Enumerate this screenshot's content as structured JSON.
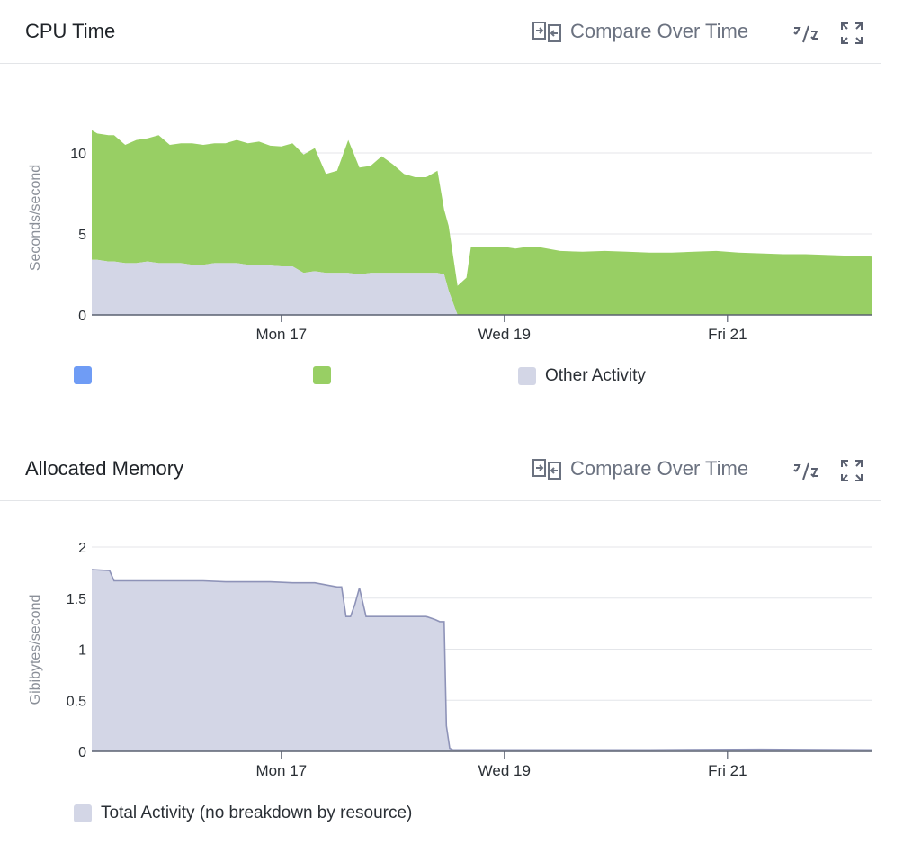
{
  "panels": [
    {
      "title": "CPU Time",
      "compare_label": "Compare Over Time",
      "icons": [
        "compare-icon",
        "split-icon",
        "expand-icon"
      ],
      "chart_data": {
        "type": "area",
        "stacked": true,
        "ylabel": "Seconds/second",
        "yticks": [
          0,
          5,
          10
        ],
        "ylim": [
          0,
          11.5
        ],
        "xlim": [
          0,
          35
        ],
        "xticks": [
          {
            "x": 8.5,
            "label": "Mon 17"
          },
          {
            "x": 18.5,
            "label": "Wed 19"
          },
          {
            "x": 28.5,
            "label": "Fri 21"
          }
        ],
        "grid": true,
        "series": [
          {
            "name": "",
            "color": "#6f9cf5",
            "x": [
              0,
              35
            ],
            "values": [
              0,
              0
            ]
          },
          {
            "name": "",
            "color": "#98cf64",
            "x": [
              0,
              0.25,
              0.75,
              1,
              1.5,
              2,
              2.5,
              3,
              3.5,
              4,
              4.5,
              5,
              5.5,
              6,
              6.5,
              7,
              7.5,
              8,
              8.5,
              9,
              9.5,
              10,
              10.5,
              11,
              11.5,
              12,
              12.5,
              13,
              13.5,
              14,
              14.5,
              15,
              15.5,
              15.8,
              16,
              16.4,
              16.8,
              17,
              17.5,
              18,
              18.5,
              19,
              19.5,
              20,
              21,
              22,
              23,
              24,
              25,
              26,
              27,
              28,
              29,
              30,
              31,
              32,
              33,
              34,
              34.5,
              35
            ],
            "values": [
              8.0,
              7.8,
              7.8,
              7.8,
              7.3,
              7.6,
              7.6,
              7.9,
              7.3,
              7.4,
              7.5,
              7.4,
              7.4,
              7.4,
              7.6,
              7.5,
              7.6,
              7.4,
              7.4,
              7.6,
              7.3,
              7.6,
              6.1,
              6.3,
              8.2,
              6.6,
              6.6,
              7.2,
              6.7,
              6.1,
              5.9,
              5.9,
              6.3,
              4.0,
              4.0,
              1.8,
              2.3,
              4.2,
              4.2,
              4.2,
              4.2,
              4.1,
              4.2,
              4.2,
              3.95,
              3.9,
              3.95,
              3.9,
              3.85,
              3.85,
              3.9,
              3.95,
              3.85,
              3.8,
              3.75,
              3.75,
              3.7,
              3.65,
              3.65,
              3.6
            ]
          },
          {
            "name": "Other Activity",
            "color": "#d3d6e6",
            "x": [
              0,
              0.25,
              0.75,
              1,
              1.5,
              2,
              2.5,
              3,
              3.5,
              4,
              4.5,
              5,
              5.5,
              6,
              6.5,
              7,
              7.5,
              8,
              8.5,
              9,
              9.5,
              10,
              10.5,
              11,
              11.5,
              12,
              12.5,
              13,
              13.5,
              14,
              14.5,
              15,
              15.5,
              15.8,
              16,
              16.4,
              16.8,
              17,
              17.5,
              18,
              18.5,
              19,
              19.5,
              20,
              21,
              22,
              23,
              24,
              25,
              26,
              27,
              28,
              29,
              30,
              31,
              32,
              33,
              34,
              34.5,
              35
            ],
            "values": [
              3.4,
              3.4,
              3.3,
              3.3,
              3.2,
              3.2,
              3.3,
              3.2,
              3.2,
              3.2,
              3.1,
              3.1,
              3.2,
              3.2,
              3.2,
              3.1,
              3.1,
              3.05,
              3.0,
              3.0,
              2.6,
              2.7,
              2.6,
              2.6,
              2.6,
              2.5,
              2.6,
              2.6,
              2.6,
              2.6,
              2.6,
              2.6,
              2.6,
              2.5,
              1.5,
              0,
              0,
              0,
              0,
              0,
              0,
              0,
              0,
              0,
              0,
              0,
              0,
              0,
              0,
              0,
              0,
              0,
              0,
              0,
              0,
              0,
              0,
              0,
              0,
              0
            ]
          }
        ]
      },
      "legend": [
        {
          "label": "",
          "color": "#6f9cf5"
        },
        {
          "label": "",
          "color": "#98cf64"
        },
        {
          "label": "Other Activity",
          "color": "#d3d6e6"
        }
      ]
    },
    {
      "title": "Allocated Memory",
      "compare_label": "Compare Over Time",
      "icons": [
        "compare-icon",
        "split-icon",
        "expand-icon"
      ],
      "chart_data": {
        "type": "area",
        "stacked": false,
        "ylabel": "Gibibytes/second",
        "yticks": [
          0,
          0.5,
          1,
          1.5,
          2
        ],
        "ylim": [
          0,
          2
        ],
        "xlim": [
          0,
          35
        ],
        "xticks": [
          {
            "x": 8.5,
            "label": "Mon 17"
          },
          {
            "x": 18.5,
            "label": "Wed 19"
          },
          {
            "x": 28.5,
            "label": "Fri 21"
          }
        ],
        "grid": true,
        "series": [
          {
            "name": "Total Activity (no breakdown by resource)",
            "color": "#d3d6e6",
            "stroke": "#8e93b8",
            "x": [
              0,
              0.8,
              1.0,
              1.5,
              3,
              4,
              5,
              6,
              7,
              8,
              9,
              10,
              11,
              11.2,
              11.4,
              11.6,
              11.8,
              12,
              12.3,
              12.6,
              13,
              14,
              15,
              15.4,
              15.6,
              15.8,
              15.9,
              16.05,
              16.2,
              17,
              20,
              25,
              30,
              35
            ],
            "values": [
              1.78,
              1.77,
              1.67,
              1.67,
              1.67,
              1.67,
              1.67,
              1.66,
              1.66,
              1.66,
              1.65,
              1.65,
              1.61,
              1.61,
              1.32,
              1.32,
              1.44,
              1.6,
              1.32,
              1.32,
              1.32,
              1.32,
              1.32,
              1.29,
              1.27,
              1.27,
              0.25,
              0.03,
              0.015,
              0.015,
              0.015,
              0.015,
              0.02,
              0.015
            ]
          }
        ]
      },
      "legend": [
        {
          "label": "Total Activity (no breakdown by resource)",
          "color": "#d3d6e6"
        }
      ]
    }
  ]
}
